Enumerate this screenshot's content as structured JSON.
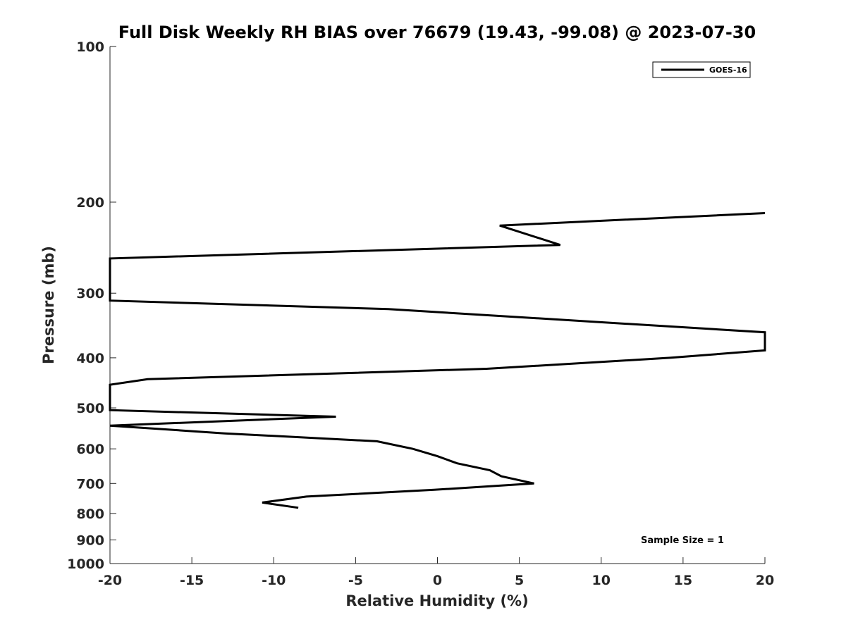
{
  "chart_data": {
    "type": "line",
    "title": "Full Disk Weekly RH BIAS over 76679 (19.43, -99.08) @ 2023-07-30",
    "xlabel": "Relative Humidity (%)",
    "ylabel": "Pressure (mb)",
    "xlim": [
      -20,
      20
    ],
    "ylim": [
      100,
      1000
    ],
    "y_scale": "log",
    "y_reversed": true,
    "grid": false,
    "legend_position": "top-right",
    "x_ticks": [
      -20,
      -15,
      -10,
      -5,
      0,
      5,
      10,
      15,
      20
    ],
    "x_tick_labels": [
      "-20",
      "-15",
      "-10",
      "-5",
      "0",
      "5",
      "10",
      "15",
      "20"
    ],
    "y_ticks": [
      100,
      200,
      300,
      400,
      500,
      600,
      700,
      800,
      900,
      1000
    ],
    "y_tick_labels": [
      "100",
      "200",
      "300",
      "400",
      "500",
      "600",
      "700",
      "800",
      "900",
      "1000"
    ],
    "series": [
      {
        "name": "GOES-16",
        "color": "#000000",
        "points": [
          {
            "x": 20.0,
            "y": 210
          },
          {
            "x": 3.8,
            "y": 222
          },
          {
            "x": 7.5,
            "y": 242
          },
          {
            "x": -20.0,
            "y": 257
          },
          {
            "x": -20.0,
            "y": 310
          },
          {
            "x": -3.0,
            "y": 322
          },
          {
            "x": 20.0,
            "y": 357
          },
          {
            "x": 20.0,
            "y": 387
          },
          {
            "x": 14.2,
            "y": 400
          },
          {
            "x": 3.0,
            "y": 420
          },
          {
            "x": -17.7,
            "y": 440
          },
          {
            "x": -20.0,
            "y": 451
          },
          {
            "x": -20.0,
            "y": 505
          },
          {
            "x": -6.2,
            "y": 520
          },
          {
            "x": -20.0,
            "y": 541
          },
          {
            "x": -13.0,
            "y": 560
          },
          {
            "x": -3.7,
            "y": 580
          },
          {
            "x": -1.5,
            "y": 600
          },
          {
            "x": 0.0,
            "y": 620
          },
          {
            "x": 1.2,
            "y": 640
          },
          {
            "x": 3.2,
            "y": 660
          },
          {
            "x": 3.9,
            "y": 678
          },
          {
            "x": 5.9,
            "y": 700
          },
          {
            "x": -0.2,
            "y": 720
          },
          {
            "x": -8.0,
            "y": 742
          },
          {
            "x": -10.7,
            "y": 762
          },
          {
            "x": -8.5,
            "y": 780
          }
        ]
      }
    ],
    "annotations": [
      {
        "text": "Sample Size = 1",
        "position": "bottom-right"
      }
    ]
  }
}
